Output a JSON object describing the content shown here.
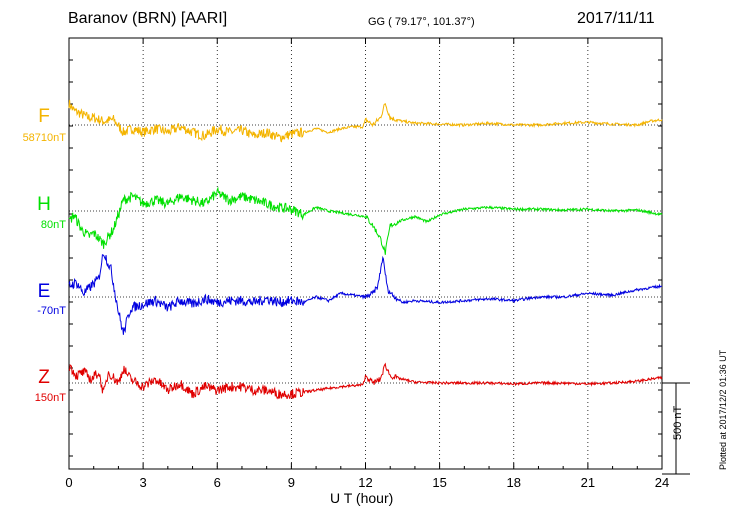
{
  "header": {
    "station": "Baranov (BRN)  [AARI]",
    "coordinates": "GG ( 79.17°, 101.37°)",
    "date": "2017/11/11"
  },
  "footer": {
    "plotted": "Plotted at 2017/12/2 01:36 UT"
  },
  "chart_data": {
    "type": "line",
    "xlabel": "U T (hour)",
    "xlim": [
      0,
      24
    ],
    "x_ticks": [
      "0",
      "3",
      "6",
      "9",
      "12",
      "15",
      "18",
      "21",
      "24"
    ],
    "grid": true,
    "scale_bar": {
      "label": "500 nT",
      "value_nT": 500
    },
    "series": [
      {
        "name": "F",
        "baseline": "58710nT",
        "color": "#f4b400",
        "x": [
          0,
          0.2,
          0.5,
          0.8,
          1.0,
          1.4,
          1.8,
          2.2,
          2.6,
          3.0,
          3.5,
          4.0,
          4.5,
          5.0,
          5.5,
          6.0,
          6.5,
          7.0,
          7.5,
          8.0,
          8.5,
          9.0,
          9.5,
          10.0,
          10.5,
          11.0,
          11.5,
          11.9,
          12.0,
          12.3,
          12.6,
          12.8,
          13.0,
          13.5,
          14.0,
          15.0,
          16.0,
          17.0,
          18.0,
          19.0,
          20.0,
          21.0,
          22.0,
          23.0,
          23.5,
          24.0
        ],
        "y": [
          120,
          80,
          60,
          40,
          40,
          20,
          30,
          -40,
          -20,
          -40,
          -20,
          -40,
          -10,
          -40,
          -60,
          -20,
          -40,
          -30,
          -60,
          -40,
          -70,
          -50,
          -40,
          -20,
          -40,
          -20,
          -10,
          -10,
          30,
          0,
          40,
          120,
          40,
          20,
          10,
          5,
          0,
          10,
          0,
          0,
          10,
          15,
          5,
          0,
          20,
          30
        ]
      },
      {
        "name": "H",
        "baseline": "80nT",
        "color": "#00e000",
        "x": [
          0,
          0.2,
          0.5,
          0.8,
          1.0,
          1.4,
          1.8,
          2.2,
          2.6,
          3.0,
          3.5,
          4.0,
          4.5,
          5.0,
          5.5,
          6.0,
          6.5,
          7.0,
          7.5,
          8.0,
          8.5,
          9.0,
          9.5,
          10.0,
          10.5,
          11.0,
          11.5,
          12.0,
          12.3,
          12.6,
          12.8,
          13.0,
          13.5,
          14.0,
          14.5,
          15.0,
          16.0,
          17.0,
          18.0,
          19.0,
          20.0,
          21.0,
          22.0,
          23.0,
          24.0
        ],
        "y": [
          -60,
          -20,
          -100,
          -140,
          -120,
          -180,
          -100,
          60,
          80,
          40,
          60,
          40,
          80,
          60,
          40,
          100,
          60,
          80,
          60,
          40,
          20,
          10,
          -20,
          20,
          0,
          -10,
          -20,
          -30,
          -80,
          -150,
          -230,
          -80,
          -50,
          -30,
          -60,
          -20,
          10,
          20,
          10,
          10,
          5,
          10,
          0,
          5,
          -20
        ]
      },
      {
        "name": "E",
        "baseline": "-70nT",
        "color": "#0000e0",
        "x": [
          0,
          0.3,
          0.6,
          0.9,
          1.2,
          1.4,
          1.7,
          2.0,
          2.2,
          2.5,
          3.0,
          3.5,
          4.0,
          4.5,
          5.0,
          5.5,
          6.0,
          6.5,
          7.0,
          7.5,
          8.0,
          8.5,
          9.0,
          9.5,
          10.0,
          10.5,
          11.0,
          11.5,
          12.0,
          12.3,
          12.5,
          12.7,
          12.9,
          13.1,
          13.5,
          14.0,
          15.0,
          16.0,
          17.0,
          18.0,
          19.0,
          20.0,
          21.0,
          22.0,
          23.0,
          24.0
        ],
        "y": [
          60,
          80,
          20,
          60,
          100,
          250,
          150,
          -80,
          -200,
          -60,
          -40,
          -20,
          -60,
          -20,
          -40,
          -10,
          -30,
          -20,
          -20,
          -30,
          -10,
          -30,
          -20,
          -30,
          0,
          -20,
          20,
          10,
          0,
          20,
          60,
          220,
          40,
          10,
          -30,
          -20,
          -30,
          -20,
          -10,
          -20,
          0,
          0,
          20,
          10,
          40,
          60
        ]
      },
      {
        "name": "Z",
        "baseline": "150nT",
        "color": "#e00000",
        "x": [
          0,
          0.3,
          0.6,
          0.9,
          1.2,
          1.4,
          1.6,
          2.0,
          2.2,
          2.5,
          3.0,
          3.5,
          4.0,
          4.5,
          5.0,
          5.5,
          6.0,
          6.5,
          7.0,
          7.5,
          8.0,
          8.5,
          9.0,
          9.5,
          10.0,
          10.5,
          11.0,
          11.5,
          11.9,
          12.0,
          12.3,
          12.6,
          12.8,
          13.0,
          13.5,
          14.0,
          15.0,
          16.0,
          17.0,
          18.0,
          19.0,
          20.0,
          21.0,
          22.0,
          23.0,
          24.0
        ],
        "y": [
          100,
          40,
          60,
          20,
          60,
          -60,
          60,
          0,
          80,
          20,
          -20,
          20,
          -40,
          0,
          -60,
          -20,
          -40,
          -20,
          -20,
          -40,
          -40,
          -60,
          -60,
          -50,
          -40,
          -30,
          -20,
          -15,
          -10,
          40,
          0,
          20,
          100,
          40,
          20,
          5,
          0,
          0,
          0,
          -5,
          0,
          0,
          -5,
          0,
          10,
          30
        ]
      }
    ]
  }
}
